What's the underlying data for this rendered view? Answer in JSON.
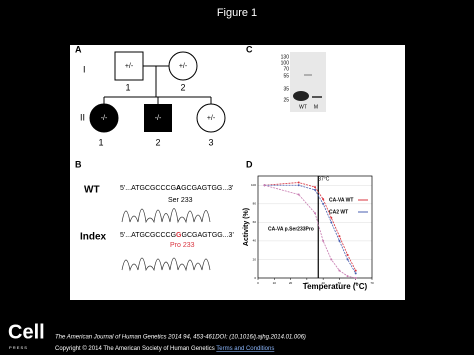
{
  "header": {
    "title": "Figure 1"
  },
  "panel_a": {
    "label": "A",
    "generations": [
      "I",
      "II"
    ],
    "gen1": [
      {
        "genotype": "+/-",
        "number": "1"
      },
      {
        "genotype": "+/-",
        "number": "2"
      }
    ],
    "gen2": [
      {
        "genotype": "-/-",
        "number": "1"
      },
      {
        "genotype": "-/-",
        "number": "2"
      },
      {
        "genotype": "+/-",
        "number": "3"
      }
    ]
  },
  "panel_b": {
    "label": "B",
    "wt": {
      "label": "WT",
      "sequence": [
        "5'...ATGCGCCCG",
        "A",
        "GCGAGTGG...3'"
      ],
      "residue": "Ser 233"
    },
    "index": {
      "label": "Index",
      "sequence": [
        "5'...ATGCGCCCG",
        "G",
        "GCGAGTGG...3'"
      ],
      "residue": "Pro 233"
    }
  },
  "panel_c": {
    "label": "C",
    "markers": [
      "130",
      "100",
      "70",
      "55",
      "35",
      "25"
    ],
    "lanes": [
      "WT",
      "M"
    ]
  },
  "panel_d": {
    "label": "D",
    "type": "line",
    "ylabel": "Activity (%)",
    "xlabel": "Temperature (°C)",
    "annotation": "37°C",
    "annotation_x": 37,
    "mutant_label": "CA-VA p.Ser233Pro",
    "x": [
      4,
      25,
      35,
      40,
      45,
      50,
      55,
      60
    ],
    "series": [
      {
        "name": "CA-VA WT",
        "color": "#d9343f",
        "values": [
          100,
          103,
          98,
          85,
          65,
          45,
          25,
          8
        ]
      },
      {
        "name": "CA2 WT",
        "color": "#4a5fb0",
        "values": [
          100,
          100,
          95,
          80,
          60,
          40,
          20,
          5
        ]
      },
      {
        "color": "#c77ab0",
        "values": [
          100,
          90,
          70,
          40,
          20,
          8,
          2,
          0
        ]
      }
    ],
    "xlim": [
      0,
      70
    ],
    "xticks": [
      0,
      10,
      20,
      30,
      40,
      50,
      60,
      70
    ],
    "ylim": [
      0,
      110
    ],
    "yticks": [
      0,
      20,
      40,
      60,
      80,
      100
    ]
  },
  "footer": {
    "logo": "Cell",
    "logo_sub": "P R E S S",
    "citation": "The American Journal of Human Genetics 2014 94, 453-461DOI: (10.1016/j.ajhg.2014.01.006)",
    "copyright": "Copyright © 2014 The American Society of Human Genetics",
    "link": "Terms and Conditions"
  }
}
